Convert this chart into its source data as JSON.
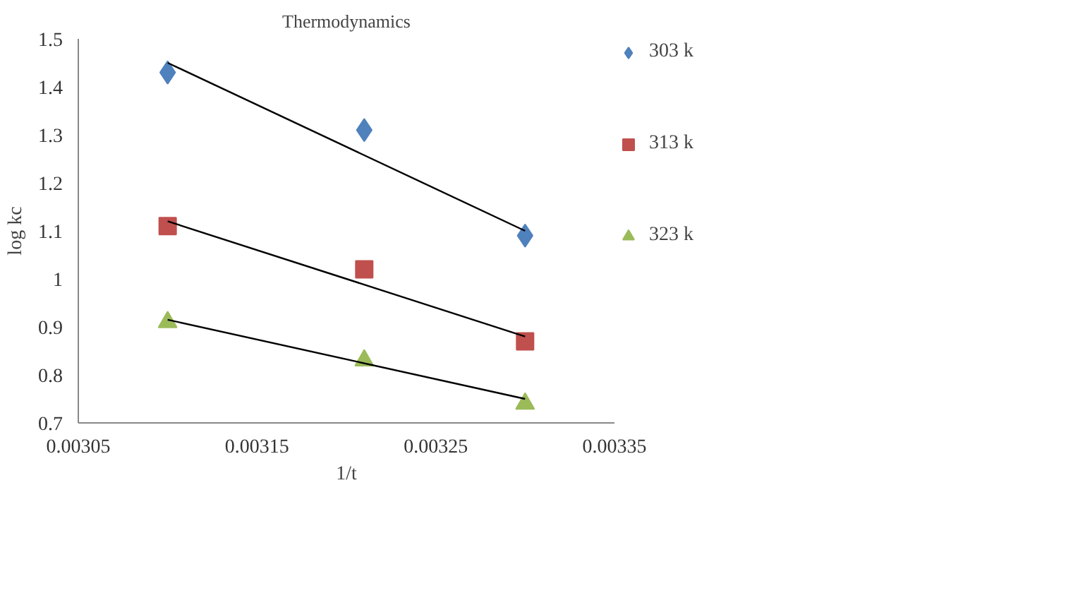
{
  "chart_data": {
    "type": "scatter",
    "title": "Thermodynamics",
    "xlabel": "1/t",
    "ylabel": "log kc",
    "xlim": [
      0.00305,
      0.00335
    ],
    "xticks": [
      0.00305,
      0.00315,
      0.00325,
      0.00335
    ],
    "ylim": [
      0.7,
      1.5
    ],
    "yticks": [
      0.7,
      0.8,
      0.9,
      {
        "value": 1,
        "label": "1"
      },
      1.1,
      1.2,
      1.3,
      1.4,
      1.5
    ],
    "grid": false,
    "legend": "right",
    "series": [
      {
        "name": "303 k",
        "color": "#4f81bd",
        "marker": "diamond",
        "x": [
          0.0031,
          0.00321,
          0.0033
        ],
        "values": [
          1.43,
          1.31,
          1.09
        ]
      },
      {
        "name": "313 k",
        "color": "#c0504d",
        "marker": "square",
        "x": [
          0.0031,
          0.00321,
          0.0033
        ],
        "values": [
          1.11,
          1.02,
          0.87
        ]
      },
      {
        "name": "323 k",
        "color": "#9bbb59",
        "marker": "triangle",
        "x": [
          0.0031,
          0.00321,
          0.0033
        ],
        "values": [
          0.91,
          0.83,
          0.74
        ]
      },
      {
        "type": "line",
        "color": "#000000",
        "x": [
          0.0031,
          0.0033
        ],
        "values": [
          1.45,
          1.1
        ]
      },
      {
        "type": "line",
        "color": "#000000",
        "x": [
          0.0031,
          0.0033
        ],
        "values": [
          1.12,
          0.88
        ]
      },
      {
        "type": "line",
        "color": "#000000",
        "x": [
          0.0031,
          0.0033
        ],
        "values": [
          0.915,
          0.75
        ]
      }
    ]
  }
}
